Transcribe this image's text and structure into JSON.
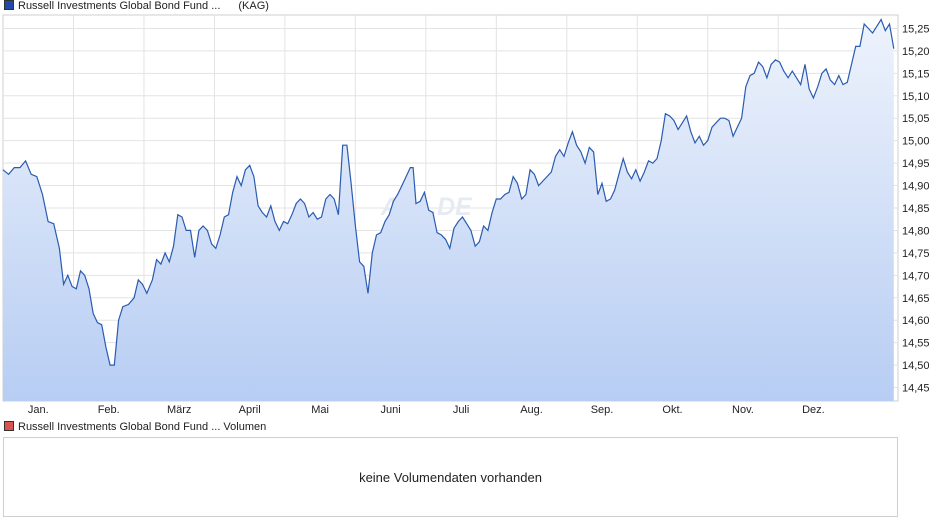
{
  "price_legend": {
    "name": "Russell Investments Global Bond Fund ...",
    "type": "(KAG)",
    "color": "#1f4aa5"
  },
  "volume_legend": {
    "name": "Russell Investments Global Bond Fund ... Volumen",
    "color": "#d9534f"
  },
  "volume_panel": {
    "message": "keine Volumendaten vorhanden"
  },
  "watermark": "AVA.DE",
  "colors": {
    "line": "#2a5bb0",
    "fill_top": "#eef3fc",
    "fill_bottom": "#b7cdf3",
    "grid": "#e3e3e3"
  },
  "chart_data": {
    "type": "area",
    "x_tick_labels": [
      "Jan.",
      "Feb.",
      "März",
      "April",
      "Mai",
      "Juni",
      "Juli",
      "Aug.",
      "Sep.",
      "Okt.",
      "Nov.",
      "Dez."
    ],
    "y_tick_labels": [
      "15,25",
      "15,20",
      "15,15",
      "15,10",
      "15,05",
      "15,00",
      "14,95",
      "14,90",
      "14,85",
      "14,80",
      "14,75",
      "14,70",
      "14,65",
      "14,60",
      "14,55",
      "14,50",
      "14,45"
    ],
    "y_ticks": [
      15.25,
      15.2,
      15.15,
      15.1,
      15.05,
      15.0,
      14.95,
      14.9,
      14.85,
      14.8,
      14.75,
      14.7,
      14.65,
      14.6,
      14.55,
      14.5,
      14.45
    ],
    "ylim": [
      14.42,
      15.28
    ],
    "xlim": [
      0,
      12.7
    ],
    "axis_side": "right",
    "grid": true,
    "series": [
      {
        "values": [
          [
            0.0,
            14.935
          ],
          [
            0.08,
            14.925
          ],
          [
            0.16,
            14.94
          ],
          [
            0.24,
            14.94
          ],
          [
            0.32,
            14.955
          ],
          [
            0.4,
            14.925
          ],
          [
            0.48,
            14.92
          ],
          [
            0.56,
            14.88
          ],
          [
            0.64,
            14.82
          ],
          [
            0.72,
            14.815
          ],
          [
            0.8,
            14.76
          ],
          [
            0.86,
            14.68
          ],
          [
            0.92,
            14.7
          ],
          [
            0.98,
            14.675
          ],
          [
            1.04,
            14.67
          ],
          [
            1.1,
            14.71
          ],
          [
            1.16,
            14.7
          ],
          [
            1.22,
            14.67
          ],
          [
            1.28,
            14.615
          ],
          [
            1.34,
            14.595
          ],
          [
            1.4,
            14.59
          ],
          [
            1.46,
            14.54
          ],
          [
            1.52,
            14.5
          ],
          [
            1.58,
            14.5
          ],
          [
            1.64,
            14.6
          ],
          [
            1.7,
            14.63
          ],
          [
            1.78,
            14.635
          ],
          [
            1.86,
            14.65
          ],
          [
            1.92,
            14.69
          ],
          [
            1.98,
            14.68
          ],
          [
            2.04,
            14.66
          ],
          [
            2.12,
            14.69
          ],
          [
            2.18,
            14.735
          ],
          [
            2.24,
            14.725
          ],
          [
            2.3,
            14.75
          ],
          [
            2.36,
            14.73
          ],
          [
            2.42,
            14.765
          ],
          [
            2.48,
            14.835
          ],
          [
            2.54,
            14.83
          ],
          [
            2.6,
            14.8
          ],
          [
            2.66,
            14.8
          ],
          [
            2.72,
            14.74
          ],
          [
            2.78,
            14.8
          ],
          [
            2.84,
            14.81
          ],
          [
            2.9,
            14.8
          ],
          [
            2.96,
            14.77
          ],
          [
            3.02,
            14.76
          ],
          [
            3.08,
            14.79
          ],
          [
            3.14,
            14.83
          ],
          [
            3.2,
            14.835
          ],
          [
            3.26,
            14.885
          ],
          [
            3.32,
            14.92
          ],
          [
            3.38,
            14.9
          ],
          [
            3.44,
            14.935
          ],
          [
            3.5,
            14.945
          ],
          [
            3.56,
            14.92
          ],
          [
            3.62,
            14.855
          ],
          [
            3.68,
            14.84
          ],
          [
            3.74,
            14.83
          ],
          [
            3.8,
            14.855
          ],
          [
            3.86,
            14.82
          ],
          [
            3.92,
            14.8
          ],
          [
            3.98,
            14.82
          ],
          [
            4.04,
            14.815
          ],
          [
            4.1,
            14.835
          ],
          [
            4.16,
            14.86
          ],
          [
            4.22,
            14.87
          ],
          [
            4.28,
            14.86
          ],
          [
            4.34,
            14.83
          ],
          [
            4.4,
            14.84
          ],
          [
            4.46,
            14.825
          ],
          [
            4.52,
            14.83
          ],
          [
            4.58,
            14.87
          ],
          [
            4.64,
            14.88
          ],
          [
            4.7,
            14.87
          ],
          [
            4.76,
            14.835
          ],
          [
            4.82,
            14.99
          ],
          [
            4.88,
            14.99
          ],
          [
            4.94,
            14.905
          ],
          [
            5.0,
            14.81
          ],
          [
            5.06,
            14.73
          ],
          [
            5.12,
            14.72
          ],
          [
            5.18,
            14.66
          ],
          [
            5.24,
            14.75
          ],
          [
            5.3,
            14.79
          ],
          [
            5.36,
            14.795
          ],
          [
            5.42,
            14.82
          ],
          [
            5.48,
            14.835
          ],
          [
            5.54,
            14.865
          ],
          [
            5.6,
            14.88
          ],
          [
            5.66,
            14.9
          ],
          [
            5.72,
            14.92
          ],
          [
            5.78,
            14.94
          ],
          [
            5.82,
            14.94
          ],
          [
            5.86,
            14.86
          ],
          [
            5.92,
            14.865
          ],
          [
            5.98,
            14.885
          ],
          [
            6.04,
            14.845
          ],
          [
            6.1,
            14.84
          ],
          [
            6.16,
            14.795
          ],
          [
            6.22,
            14.79
          ],
          [
            6.28,
            14.78
          ],
          [
            6.34,
            14.76
          ],
          [
            6.4,
            14.805
          ],
          [
            6.46,
            14.82
          ],
          [
            6.52,
            14.83
          ],
          [
            6.58,
            14.815
          ],
          [
            6.64,
            14.8
          ],
          [
            6.7,
            14.765
          ],
          [
            6.76,
            14.775
          ],
          [
            6.82,
            14.81
          ],
          [
            6.88,
            14.8
          ],
          [
            6.94,
            14.84
          ],
          [
            7.0,
            14.87
          ],
          [
            7.06,
            14.87
          ],
          [
            7.12,
            14.88
          ],
          [
            7.18,
            14.885
          ],
          [
            7.24,
            14.92
          ],
          [
            7.3,
            14.905
          ],
          [
            7.36,
            14.87
          ],
          [
            7.42,
            14.88
          ],
          [
            7.48,
            14.935
          ],
          [
            7.54,
            14.925
          ],
          [
            7.6,
            14.9
          ],
          [
            7.66,
            14.91
          ],
          [
            7.72,
            14.92
          ],
          [
            7.78,
            14.93
          ],
          [
            7.84,
            14.965
          ],
          [
            7.9,
            14.98
          ],
          [
            7.96,
            14.965
          ],
          [
            8.02,
            14.995
          ],
          [
            8.08,
            15.02
          ],
          [
            8.14,
            14.99
          ],
          [
            8.2,
            14.975
          ],
          [
            8.26,
            14.95
          ],
          [
            8.32,
            14.985
          ],
          [
            8.38,
            14.975
          ],
          [
            8.44,
            14.88
          ],
          [
            8.5,
            14.905
          ],
          [
            8.56,
            14.865
          ],
          [
            8.62,
            14.87
          ],
          [
            8.68,
            14.89
          ],
          [
            8.74,
            14.925
          ],
          [
            8.8,
            14.96
          ],
          [
            8.86,
            14.93
          ],
          [
            8.92,
            14.915
          ],
          [
            8.98,
            14.935
          ],
          [
            9.04,
            14.91
          ],
          [
            9.1,
            14.93
          ],
          [
            9.16,
            14.955
          ],
          [
            9.22,
            14.95
          ],
          [
            9.28,
            14.96
          ],
          [
            9.34,
            15.0
          ],
          [
            9.4,
            15.06
          ],
          [
            9.46,
            15.055
          ],
          [
            9.52,
            15.045
          ],
          [
            9.58,
            15.025
          ],
          [
            9.64,
            15.04
          ],
          [
            9.7,
            15.055
          ],
          [
            9.76,
            15.02
          ],
          [
            9.82,
            14.995
          ],
          [
            9.88,
            15.01
          ],
          [
            9.94,
            14.99
          ],
          [
            10.0,
            15.0
          ],
          [
            10.06,
            15.03
          ],
          [
            10.12,
            15.04
          ],
          [
            10.18,
            15.05
          ],
          [
            10.24,
            15.05
          ],
          [
            10.3,
            15.045
          ],
          [
            10.36,
            15.01
          ],
          [
            10.42,
            15.03
          ],
          [
            10.48,
            15.05
          ],
          [
            10.54,
            15.12
          ],
          [
            10.6,
            15.145
          ],
          [
            10.66,
            15.15
          ],
          [
            10.72,
            15.175
          ],
          [
            10.78,
            15.165
          ],
          [
            10.84,
            15.14
          ],
          [
            10.9,
            15.17
          ],
          [
            10.96,
            15.18
          ],
          [
            11.02,
            15.175
          ],
          [
            11.08,
            15.155
          ],
          [
            11.14,
            15.14
          ],
          [
            11.2,
            15.155
          ],
          [
            11.26,
            15.14
          ],
          [
            11.32,
            15.125
          ],
          [
            11.38,
            15.17
          ],
          [
            11.44,
            15.115
          ],
          [
            11.5,
            15.095
          ],
          [
            11.56,
            15.12
          ],
          [
            11.62,
            15.15
          ],
          [
            11.68,
            15.16
          ],
          [
            11.74,
            15.135
          ],
          [
            11.8,
            15.125
          ],
          [
            11.86,
            15.145
          ],
          [
            11.92,
            15.125
          ],
          [
            11.98,
            15.13
          ],
          [
            12.04,
            15.17
          ],
          [
            12.1,
            15.21
          ],
          [
            12.16,
            15.21
          ],
          [
            12.22,
            15.26
          ],
          [
            12.28,
            15.25
          ],
          [
            12.34,
            15.24
          ],
          [
            12.4,
            15.255
          ],
          [
            12.46,
            15.27
          ],
          [
            12.52,
            15.245
          ],
          [
            12.58,
            15.26
          ],
          [
            12.64,
            15.205
          ]
        ]
      }
    ]
  }
}
